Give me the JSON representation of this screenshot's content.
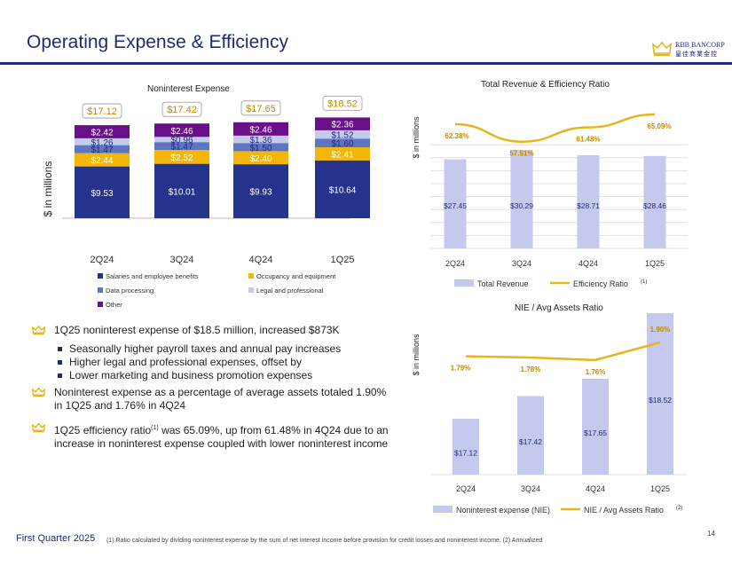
{
  "header": {
    "title": "Operating Expense & Efficiency",
    "logo_name": "RBB BANCORP",
    "logo_sub": "皇佳商業金控"
  },
  "colors": {
    "navy": "#1e2a7a",
    "salaries": "#25338c",
    "occupancy": "#f5b60a",
    "data_processing": "#5f75c2",
    "legal": "#c7cbea",
    "other": "#6a0f8a",
    "bar_light": "#c5c9ee",
    "line_gold": "#e8b41c"
  },
  "chart_data": [
    {
      "type": "bar",
      "stacked": true,
      "title": "Noninterest Expense",
      "ylabel": "$ in millions",
      "categories": [
        "2Q24",
        "3Q24",
        "4Q24",
        "1Q25"
      ],
      "series": [
        {
          "name": "Salaries and employee benefits",
          "values": [
            9.53,
            10.01,
            9.93,
            10.64
          ],
          "labels": [
            "$9.53",
            "$10.01",
            "$9.93",
            "$10.64"
          ]
        },
        {
          "name": "Occupancy and equipment",
          "values": [
            2.44,
            2.52,
            2.4,
            2.41
          ],
          "labels": [
            "$2.44",
            "$2.52",
            "$2.40",
            "$2.41"
          ]
        },
        {
          "name": "Data processing",
          "values": [
            1.47,
            1.47,
            1.5,
            1.6
          ],
          "labels": [
            "$1.47",
            "$1.47",
            "$1.50",
            "$1.60"
          ]
        },
        {
          "name": "Legal and professional",
          "values": [
            1.26,
            0.96,
            1.36,
            1.52
          ],
          "labels": [
            "$1.26",
            "$0.96",
            "$1.36",
            "$1.52"
          ]
        },
        {
          "name": "Other",
          "values": [
            2.42,
            2.46,
            2.46,
            2.36
          ],
          "labels": [
            "$2.42",
            "$2.46",
            "$2.46",
            "$2.36"
          ]
        }
      ],
      "totals": [
        "$17.12",
        "$17.42",
        "$17.65",
        "$18.52"
      ],
      "ylim": [
        0,
        20
      ]
    },
    {
      "type": "bar",
      "title": "Total Revenue  & Efficiency Ratio",
      "ylabel": "$ in millions",
      "categories": [
        "2Q24",
        "3Q24",
        "4Q24",
        "1Q25"
      ],
      "series": [
        {
          "name": "Total Revenue",
          "values": [
            27.45,
            30.29,
            28.71,
            28.46
          ],
          "labels": [
            "$27.45",
            "$30.29",
            "$28.71",
            "$28.46"
          ]
        },
        {
          "name": "Efficiency Ratio",
          "values": [
            62.38,
            57.51,
            61.48,
            65.09
          ],
          "labels": [
            "62.38%",
            "57.51%",
            "61.48%",
            "65.09%"
          ],
          "note": "(1)"
        }
      ]
    },
    {
      "type": "bar",
      "title": "NIE / Avg Assets  Ratio",
      "ylabel": "$ in millions",
      "categories": [
        "2Q24",
        "3Q24",
        "4Q24",
        "1Q25"
      ],
      "series": [
        {
          "name": "Noninterest expense (NIE)",
          "values": [
            17.12,
            17.42,
            17.65,
            18.52
          ],
          "labels": [
            "$17.12",
            "$17.42",
            "$17.65",
            "$18.52"
          ]
        },
        {
          "name": "NIE / Avg Assets  Ratio",
          "values": [
            1.79,
            1.78,
            1.76,
            1.9
          ],
          "labels": [
            "1.79%",
            "1.78%",
            "1.76%",
            "1.90%"
          ],
          "note": "(2)"
        }
      ]
    }
  ],
  "bullets": [
    {
      "text": "1Q25 noninterest expense of $18.5 million, increased $873K",
      "subs": [
        "Seasonally higher payroll taxes and annual pay increases",
        "Higher legal and professional expenses, offset by",
        "Lower marketing and business promotion expenses"
      ]
    },
    {
      "text": "Noninterest expense as a percentage of average assets totaled 1.90% in 1Q25 and 1.76% in 4Q24",
      "subs": []
    },
    {
      "text_a": "1Q25 efficiency ratio",
      "sup": "(1)",
      "text_b": " was 65.09%, up from 61.48% in 4Q24 due to an increase in noninterest expense coupled with lower noninterest income",
      "subs": []
    }
  ],
  "footer": {
    "left": "First Quarter 2025",
    "note": "(1) Ratio calculated by dividing noninterest expense by the sum of net interest income before provision for credit losses and noninterest income. (2) Annualized",
    "page": "14"
  }
}
